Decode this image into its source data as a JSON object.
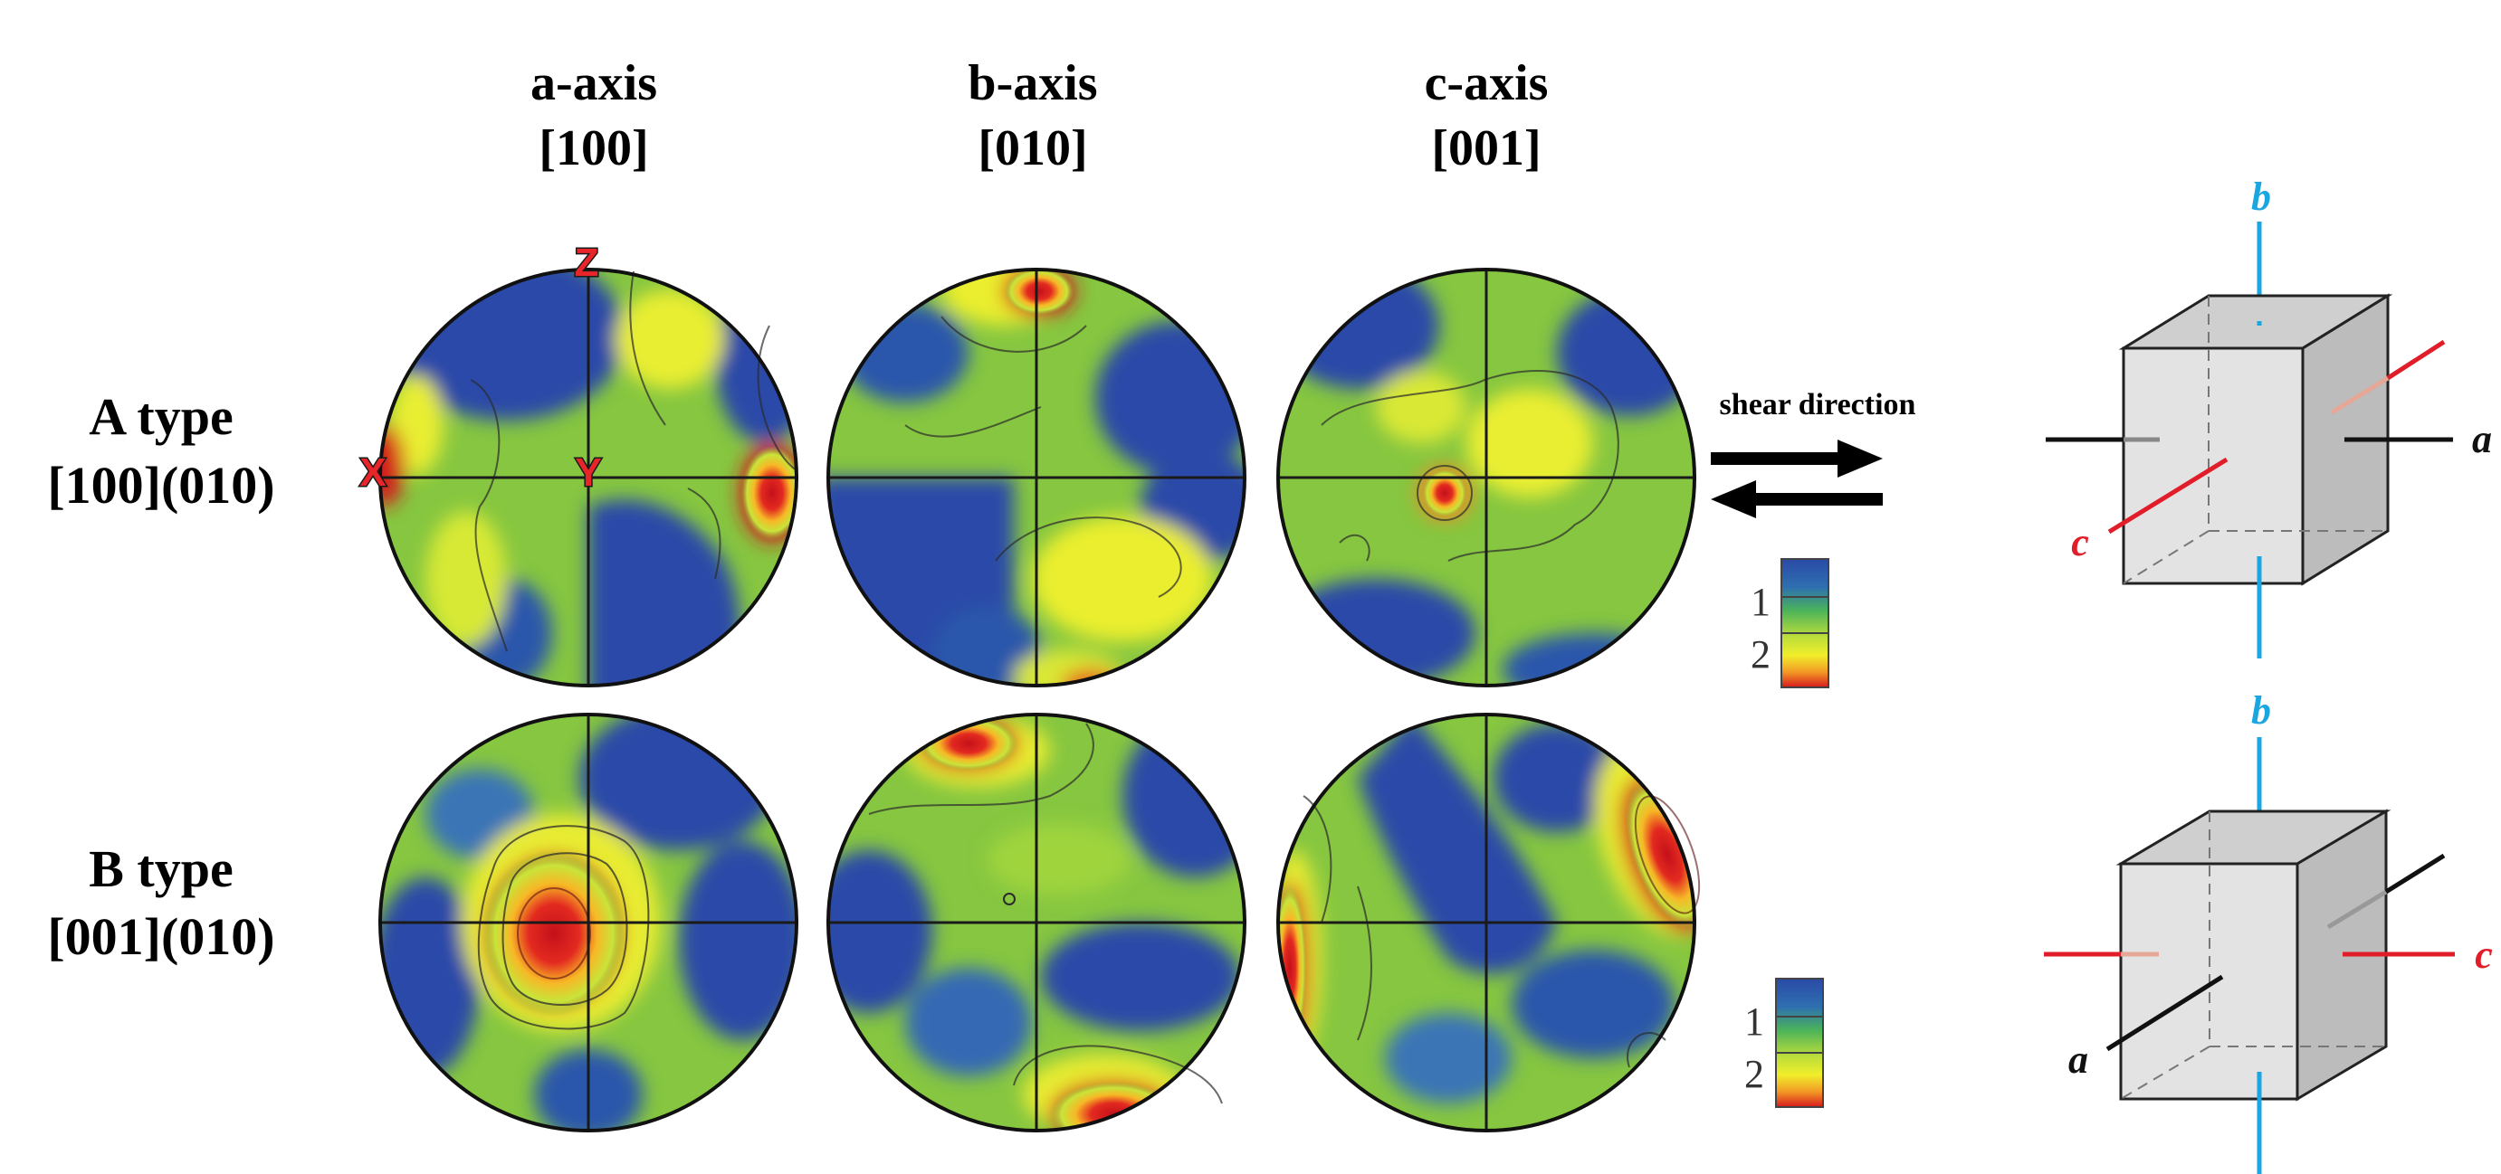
{
  "columns": [
    {
      "name": "a-axis",
      "index": "[100]"
    },
    {
      "name": "b-axis",
      "index": "[010]"
    },
    {
      "name": "c-axis",
      "index": "[001]"
    }
  ],
  "rows": [
    {
      "type": "A type",
      "system": "[100](010)"
    },
    {
      "type": "B type",
      "system": "[001](010)"
    }
  ],
  "markers": {
    "z": "Z",
    "x": "X",
    "y": "Y"
  },
  "shear_label": "shear direction",
  "scale": {
    "low": "1",
    "high": "2"
  },
  "crystal_axes": {
    "a": "a",
    "b": "b",
    "c": "c"
  },
  "colors": {
    "low": "#2a49a8",
    "mid": "#7cc23a",
    "high_yellow": "#f1ef2a",
    "high_red": "#d7191c",
    "axis_b": "#1aa6e0",
    "axis_c": "#e11d2a",
    "axis_a": "#111111",
    "cube_fill": "#dcdcdc"
  }
}
